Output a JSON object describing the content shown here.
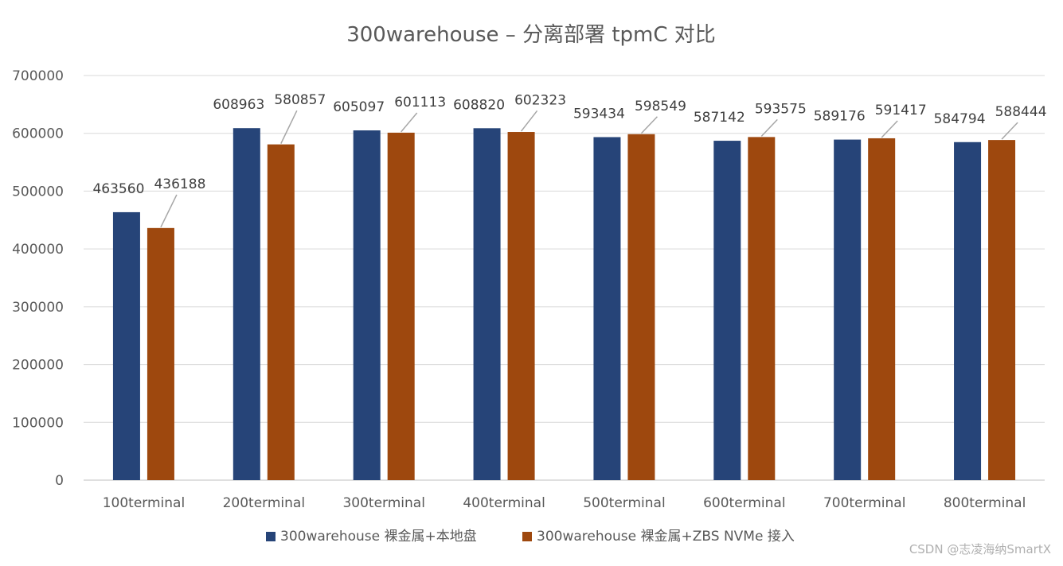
{
  "chart_data": {
    "type": "bar",
    "title": "300warehouse – 分离部署 tpmC 对比",
    "xlabel": "",
    "ylabel": "",
    "ylim": [
      0,
      700000
    ],
    "yticks": [
      0,
      100000,
      200000,
      300000,
      400000,
      500000,
      600000,
      700000
    ],
    "grid": true,
    "legend_position": "bottom",
    "categories": [
      "100terminal",
      "200terminal",
      "300terminal",
      "400terminal",
      "500terminal",
      "600terminal",
      "700terminal",
      "800terminal"
    ],
    "series": [
      {
        "name": "300warehouse 裸金属+本地盘",
        "color": "#264478",
        "values": [
          463560,
          608963,
          605097,
          608820,
          593434,
          587142,
          589176,
          584794
        ]
      },
      {
        "name": "300warehouse 裸金属+ZBS NVMe 接入",
        "color": "#9e480e",
        "values": [
          436188,
          580857,
          601113,
          602323,
          598549,
          593575,
          591417,
          588444
        ]
      }
    ]
  },
  "watermark": "CSDN @志凌海纳SmartX"
}
